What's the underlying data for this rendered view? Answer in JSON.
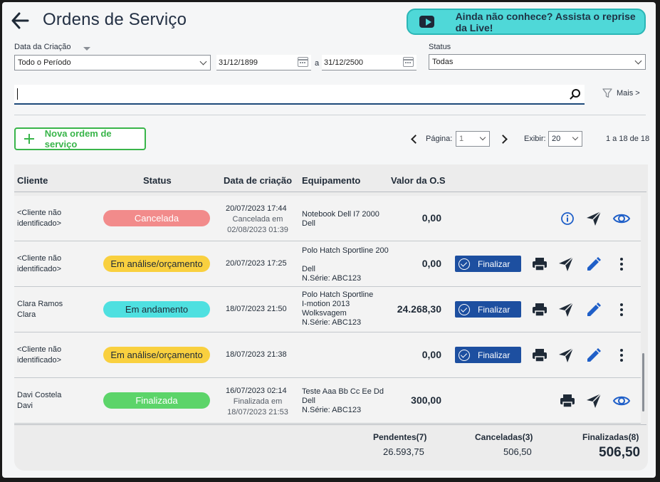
{
  "header": {
    "title": "Ordens de Serviço",
    "live_button": "Ainda não conhece? Assista o reprise da Live!"
  },
  "filters": {
    "date_label": "Data da Criação",
    "period_value": "Todo o Período",
    "date_from": "31/12/1899",
    "date_sep": "a",
    "date_to": "31/12/2500",
    "status_label": "Status",
    "status_value": "Todas",
    "search_value": "",
    "more_label": "Mais >"
  },
  "toolbar": {
    "new_order_label": "Nova ordem de serviço",
    "page_label": "Página:",
    "page_value": "1",
    "show_label": "Exibir:",
    "show_value": "20",
    "range_text": "1 a 18 de 18"
  },
  "table": {
    "columns": [
      "Cliente",
      "Status",
      "Data de criação",
      "Equipamento",
      "Valor da O.S"
    ],
    "rows": [
      {
        "client": [
          "<Cliente não",
          "identificado>"
        ],
        "status": "Cancelada",
        "date": "20/07/2023 17:44",
        "date_sub": [
          "Cancelada em",
          "02/08/2023 01:39"
        ],
        "equipment": [
          "Notebook Dell I7 2000",
          "Dell"
        ],
        "value": "0,00"
      },
      {
        "client": [
          "<Cliente não",
          "identificado>"
        ],
        "status": "Em análise/orçamento",
        "date": "20/07/2023 17:25",
        "date_sub": [],
        "equipment": [
          "Polo Hatch Sportline 200",
          "",
          "Dell",
          "N.Série: ABC123"
        ],
        "value": "0,00",
        "finalize_label": "Finalizar"
      },
      {
        "client": [
          "Clara Ramos",
          "Clara"
        ],
        "status": "Em andamento",
        "date": "18/07/2023 21:50",
        "date_sub": [],
        "equipment": [
          "Polo Hatch Sportline",
          "I-motion 2013",
          "Wolksvagem",
          "N.Série: ABC123"
        ],
        "value": "24.268,30",
        "finalize_label": "Finalizar"
      },
      {
        "client": [
          "<Cliente não",
          "identificado>"
        ],
        "status": "Em análise/orçamento",
        "date": "18/07/2023 21:38",
        "date_sub": [],
        "equipment": [],
        "value": "0,00",
        "finalize_label": "Finalizar"
      },
      {
        "client": [
          "Davi Costela",
          "Davi"
        ],
        "status": "Finalizada",
        "date": "16/07/2023 02:14",
        "date_sub": [
          "Finalizada em",
          "18/07/2023 21:53"
        ],
        "equipment": [
          "Teste  Aaa Bb Cc Ee Dd",
          "Dell",
          "N.Série: ABC123"
        ],
        "value": "300,00"
      }
    ]
  },
  "totals": {
    "pending_label": "Pendentes(7)",
    "pending_value": "26.593,75",
    "cancelled_label": "Canceladas(3)",
    "cancelled_value": "506,50",
    "finished_label": "Finalizadas(8)",
    "finished_value": "506,50"
  },
  "colors": {
    "cancelada": "#f28b8b",
    "analise": "#f9d03f",
    "andamento": "#4fe0e0",
    "finalizada": "#5cd469",
    "finalizar_button": "#1d4fa0",
    "action_icon": "#1f2a37",
    "info_icon": "#1f5fc8"
  },
  "icons": [
    "arrow-left-icon",
    "youtube-icon",
    "calendar-icon",
    "search-icon",
    "filter-icon",
    "plus-icon",
    "chevron-left-icon",
    "chevron-right-icon",
    "info-icon",
    "send-icon",
    "eye-icon",
    "print-icon",
    "edit-icon",
    "more-vertical-icon",
    "check-circle-icon"
  ]
}
